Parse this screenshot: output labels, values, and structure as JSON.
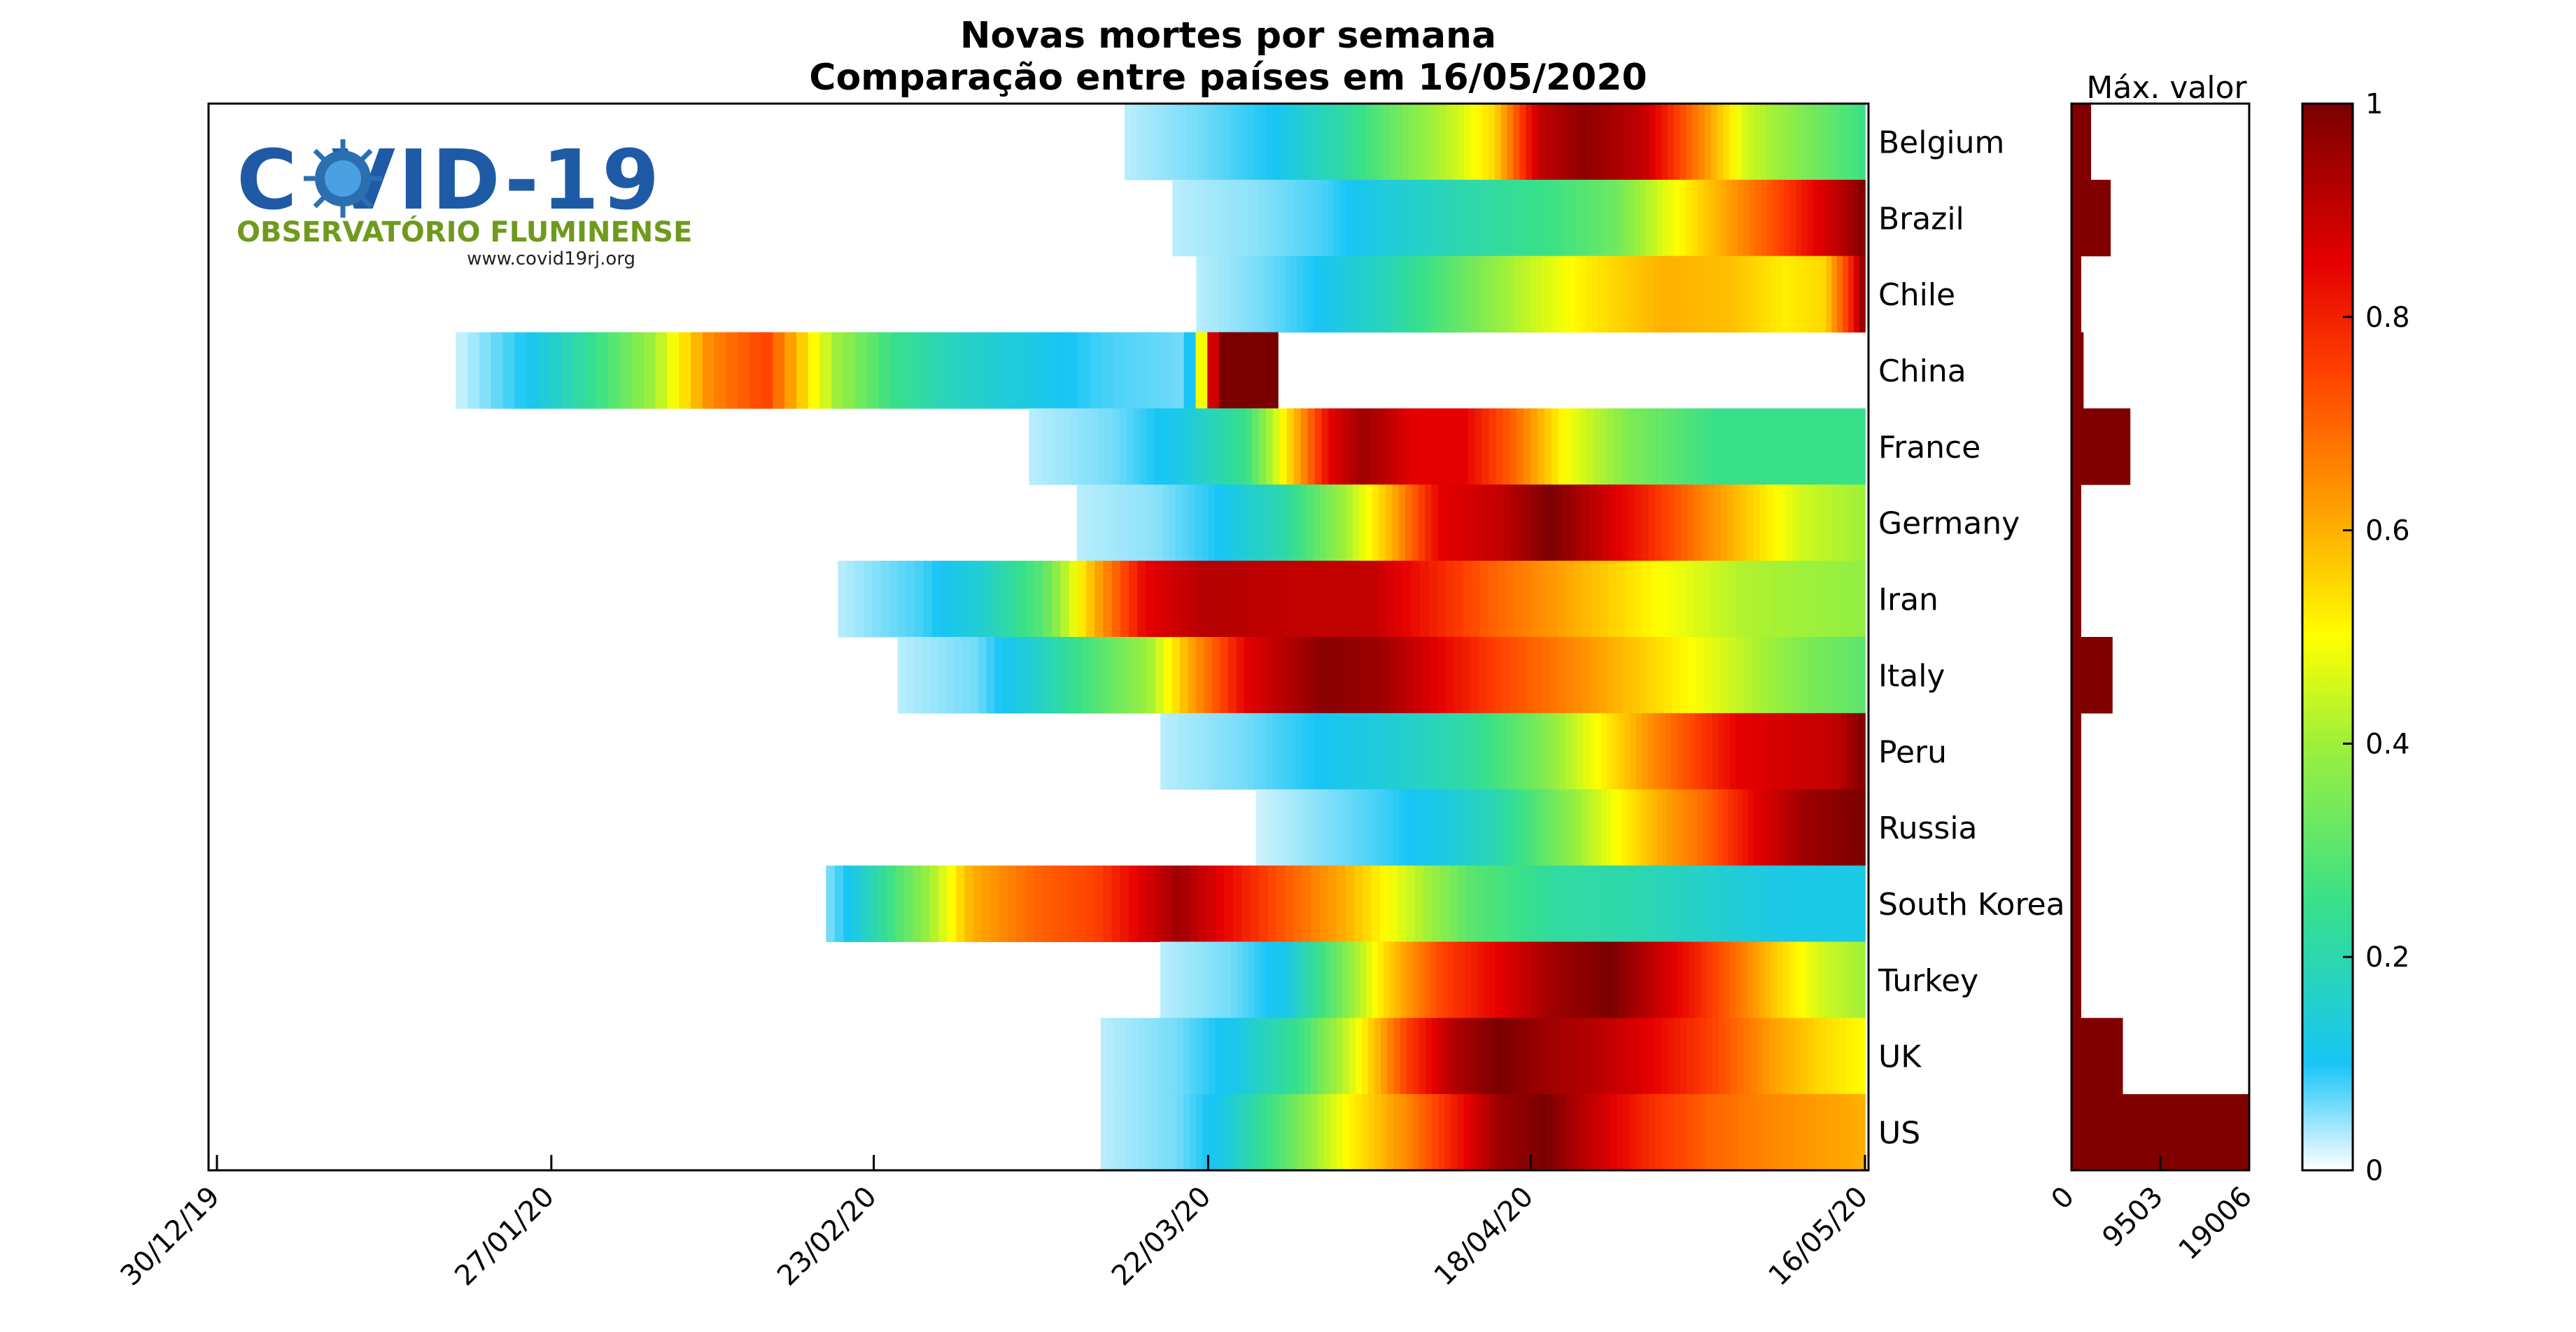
{
  "logo": {
    "main_text": "C VID-19",
    "sub_text": "OBSERVATÓRIO FLUMINENSE",
    "url": "www.covid19rj.org",
    "colors": {
      "main": "#1f5aa6",
      "sub": "#6f9a1d",
      "virus": "#2b6fb0"
    }
  },
  "chart_data": [
    {
      "type": "heatmap",
      "title": "Novas mortes por semana",
      "subtitle": "Comparação entre países em 16/05/2020",
      "colormap": "white-cyan-green-yellow-red-darkred",
      "x_tick_labels": [
        "30/12/19",
        "27/01/20",
        "23/02/20",
        "22/03/20",
        "18/04/20",
        "16/05/20"
      ],
      "x_range": [
        "30/12/19",
        "16/05/20"
      ],
      "x_days": [
        0,
        28,
        55,
        83,
        110,
        138
      ],
      "rows": [
        {
          "name": "Belgium",
          "start_day": 76,
          "end_day": 138,
          "points": [
            [
              0,
              0.03
            ],
            [
              0.1,
              0.06
            ],
            [
              0.2,
              0.1
            ],
            [
              0.3,
              0.22
            ],
            [
              0.38,
              0.35
            ],
            [
              0.45,
              0.45
            ],
            [
              0.5,
              0.55
            ],
            [
              0.56,
              0.9
            ],
            [
              0.62,
              0.97
            ],
            [
              0.7,
              0.9
            ],
            [
              0.78,
              0.65
            ],
            [
              0.84,
              0.45
            ],
            [
              0.92,
              0.35
            ],
            [
              1,
              0.25
            ]
          ]
        },
        {
          "name": "Brazil",
          "start_day": 80,
          "end_day": 138,
          "points": [
            [
              0,
              0.03
            ],
            [
              0.12,
              0.05
            ],
            [
              0.22,
              0.08
            ],
            [
              0.3,
              0.13
            ],
            [
              0.42,
              0.2
            ],
            [
              0.55,
              0.26
            ],
            [
              0.64,
              0.33
            ],
            [
              0.7,
              0.45
            ],
            [
              0.76,
              0.55
            ],
            [
              0.82,
              0.65
            ],
            [
              0.88,
              0.75
            ],
            [
              0.93,
              0.85
            ],
            [
              0.97,
              0.92
            ],
            [
              1,
              1
            ]
          ]
        },
        {
          "name": "Chile",
          "start_day": 82,
          "end_day": 138,
          "points": [
            [
              0,
              0.03
            ],
            [
              0.1,
              0.06
            ],
            [
              0.18,
              0.1
            ],
            [
              0.28,
              0.18
            ],
            [
              0.38,
              0.3
            ],
            [
              0.48,
              0.42
            ],
            [
              0.58,
              0.52
            ],
            [
              0.7,
              0.6
            ],
            [
              0.8,
              0.58
            ],
            [
              0.88,
              0.52
            ],
            [
              0.94,
              0.55
            ],
            [
              0.98,
              0.8
            ],
            [
              1,
              1
            ]
          ]
        },
        {
          "name": "China",
          "start_day": 20,
          "end_day": 138,
          "points": [
            [
              0,
              0.02
            ],
            [
              0.05,
              0.1
            ],
            [
              0.1,
              0.25
            ],
            [
              0.14,
              0.4
            ],
            [
              0.18,
              0.65
            ],
            [
              0.22,
              0.75
            ],
            [
              0.24,
              0.6
            ],
            [
              0.27,
              0.4
            ],
            [
              0.31,
              0.25
            ],
            [
              0.35,
              0.18
            ],
            [
              0.4,
              0.13
            ],
            [
              0.46,
              0.08
            ],
            [
              0.52,
              0.06
            ],
            [
              0.54,
              1
            ],
            [
              0.58,
              1
            ],
            [
              0.585,
              0
            ],
            [
              1,
              0
            ]
          ]
        },
        {
          "name": "France",
          "start_day": 68,
          "end_day": 138,
          "points": [
            [
              0,
              0.03
            ],
            [
              0.1,
              0.06
            ],
            [
              0.18,
              0.12
            ],
            [
              0.26,
              0.25
            ],
            [
              0.32,
              0.6
            ],
            [
              0.36,
              0.85
            ],
            [
              0.4,
              0.95
            ],
            [
              0.46,
              0.85
            ],
            [
              0.52,
              0.85
            ],
            [
              0.58,
              0.7
            ],
            [
              0.64,
              0.5
            ],
            [
              0.72,
              0.35
            ],
            [
              0.82,
              0.25
            ],
            [
              1,
              0.25
            ]
          ]
        },
        {
          "name": "Germany",
          "start_day": 72,
          "end_day": 138,
          "points": [
            [
              0,
              0.03
            ],
            [
              0.1,
              0.05
            ],
            [
              0.18,
              0.1
            ],
            [
              0.26,
              0.2
            ],
            [
              0.34,
              0.4
            ],
            [
              0.4,
              0.6
            ],
            [
              0.46,
              0.85
            ],
            [
              0.54,
              0.9
            ],
            [
              0.6,
              1
            ],
            [
              0.66,
              0.9
            ],
            [
              0.72,
              0.8
            ],
            [
              0.8,
              0.65
            ],
            [
              0.86,
              0.55
            ],
            [
              0.92,
              0.45
            ],
            [
              1,
              0.4
            ]
          ]
        },
        {
          "name": "Iran",
          "start_day": 52,
          "end_day": 138,
          "points": [
            [
              0,
              0.03
            ],
            [
              0.08,
              0.08
            ],
            [
              0.14,
              0.15
            ],
            [
              0.2,
              0.3
            ],
            [
              0.25,
              0.6
            ],
            [
              0.3,
              0.85
            ],
            [
              0.36,
              0.92
            ],
            [
              0.44,
              0.9
            ],
            [
              0.52,
              0.9
            ],
            [
              0.58,
              0.8
            ],
            [
              0.64,
              0.7
            ],
            [
              0.72,
              0.6
            ],
            [
              0.8,
              0.5
            ],
            [
              0.88,
              0.42
            ],
            [
              1,
              0.38
            ]
          ]
        },
        {
          "name": "Italy",
          "start_day": 57,
          "end_day": 138,
          "points": [
            [
              0,
              0.03
            ],
            [
              0.08,
              0.06
            ],
            [
              0.14,
              0.15
            ],
            [
              0.2,
              0.28
            ],
            [
              0.26,
              0.4
            ],
            [
              0.3,
              0.6
            ],
            [
              0.36,
              0.85
            ],
            [
              0.44,
              0.98
            ],
            [
              0.5,
              0.95
            ],
            [
              0.56,
              0.85
            ],
            [
              0.62,
              0.75
            ],
            [
              0.7,
              0.65
            ],
            [
              0.78,
              0.55
            ],
            [
              0.86,
              0.45
            ],
            [
              0.94,
              0.35
            ],
            [
              1,
              0.3
            ]
          ]
        },
        {
          "name": "Peru",
          "start_day": 79,
          "end_day": 138,
          "points": [
            [
              0,
              0.03
            ],
            [
              0.12,
              0.06
            ],
            [
              0.22,
              0.1
            ],
            [
              0.34,
              0.15
            ],
            [
              0.44,
              0.22
            ],
            [
              0.54,
              0.35
            ],
            [
              0.62,
              0.5
            ],
            [
              0.7,
              0.65
            ],
            [
              0.76,
              0.75
            ],
            [
              0.82,
              0.85
            ],
            [
              0.9,
              0.88
            ],
            [
              0.96,
              0.9
            ],
            [
              1,
              1
            ]
          ]
        },
        {
          "name": "Russia",
          "start_day": 87,
          "end_day": 138,
          "points": [
            [
              0,
              0.02
            ],
            [
              0.1,
              0.05
            ],
            [
              0.2,
              0.08
            ],
            [
              0.3,
              0.12
            ],
            [
              0.4,
              0.2
            ],
            [
              0.5,
              0.35
            ],
            [
              0.58,
              0.48
            ],
            [
              0.66,
              0.6
            ],
            [
              0.74,
              0.7
            ],
            [
              0.82,
              0.85
            ],
            [
              0.9,
              0.95
            ],
            [
              1,
              1
            ]
          ]
        },
        {
          "name": "South Korea",
          "start_day": 51,
          "end_day": 138,
          "points": [
            [
              0,
              0.05
            ],
            [
              0.02,
              0.1
            ],
            [
              0.06,
              0.25
            ],
            [
              0.1,
              0.4
            ],
            [
              0.14,
              0.6
            ],
            [
              0.2,
              0.7
            ],
            [
              0.26,
              0.75
            ],
            [
              0.3,
              0.85
            ],
            [
              0.34,
              0.95
            ],
            [
              0.38,
              0.85
            ],
            [
              0.44,
              0.72
            ],
            [
              0.5,
              0.6
            ],
            [
              0.56,
              0.45
            ],
            [
              0.62,
              0.3
            ],
            [
              0.7,
              0.22
            ],
            [
              0.78,
              0.2
            ],
            [
              0.86,
              0.15
            ],
            [
              0.92,
              0.12
            ],
            [
              1,
              0.12
            ]
          ]
        },
        {
          "name": "Turkey",
          "start_day": 79,
          "end_day": 138,
          "points": [
            [
              0,
              0.03
            ],
            [
              0.1,
              0.06
            ],
            [
              0.18,
              0.12
            ],
            [
              0.26,
              0.35
            ],
            [
              0.32,
              0.55
            ],
            [
              0.4,
              0.75
            ],
            [
              0.48,
              0.85
            ],
            [
              0.56,
              0.95
            ],
            [
              0.64,
              1
            ],
            [
              0.7,
              0.9
            ],
            [
              0.76,
              0.8
            ],
            [
              0.82,
              0.68
            ],
            [
              0.88,
              0.55
            ],
            [
              0.94,
              0.45
            ],
            [
              1,
              0.4
            ]
          ]
        },
        {
          "name": "UK",
          "start_day": 74,
          "end_day": 138,
          "points": [
            [
              0,
              0.03
            ],
            [
              0.1,
              0.06
            ],
            [
              0.18,
              0.12
            ],
            [
              0.26,
              0.25
            ],
            [
              0.34,
              0.5
            ],
            [
              0.4,
              0.75
            ],
            [
              0.46,
              0.92
            ],
            [
              0.52,
              1
            ],
            [
              0.58,
              0.95
            ],
            [
              0.64,
              0.92
            ],
            [
              0.72,
              0.85
            ],
            [
              0.8,
              0.75
            ],
            [
              0.88,
              0.62
            ],
            [
              0.94,
              0.55
            ],
            [
              1,
              0.5
            ]
          ]
        },
        {
          "name": "US",
          "start_day": 74,
          "end_day": 138,
          "points": [
            [
              0,
              0.03
            ],
            [
              0.1,
              0.06
            ],
            [
              0.16,
              0.12
            ],
            [
              0.24,
              0.3
            ],
            [
              0.32,
              0.5
            ],
            [
              0.4,
              0.65
            ],
            [
              0.46,
              0.8
            ],
            [
              0.52,
              0.95
            ],
            [
              0.58,
              1
            ],
            [
              0.64,
              0.9
            ],
            [
              0.72,
              0.78
            ],
            [
              0.8,
              0.7
            ],
            [
              0.88,
              0.65
            ],
            [
              1,
              0.6
            ]
          ]
        }
      ]
    },
    {
      "type": "bar",
      "title": "Máx. valor",
      "orientation": "horizontal",
      "categories": [
        "Belgium",
        "Brazil",
        "Chile",
        "China",
        "France",
        "Germany",
        "Iran",
        "Italy",
        "Peru",
        "Russia",
        "South Korea",
        "Turkey",
        "UK",
        "US"
      ],
      "values": [
        2100,
        4200,
        300,
        1300,
        6300,
        1000,
        1000,
        4400,
        500,
        600,
        50,
        800,
        5500,
        19006
      ],
      "xlim": [
        0,
        19006
      ],
      "x_tick_labels": [
        "0",
        "9503",
        "19006"
      ],
      "bar_color": "#800000"
    },
    {
      "type": "colorbar",
      "range": [
        0,
        1
      ],
      "tick_labels": [
        "0",
        "0.2",
        "0.4",
        "0.6",
        "0.8",
        "1"
      ]
    }
  ]
}
